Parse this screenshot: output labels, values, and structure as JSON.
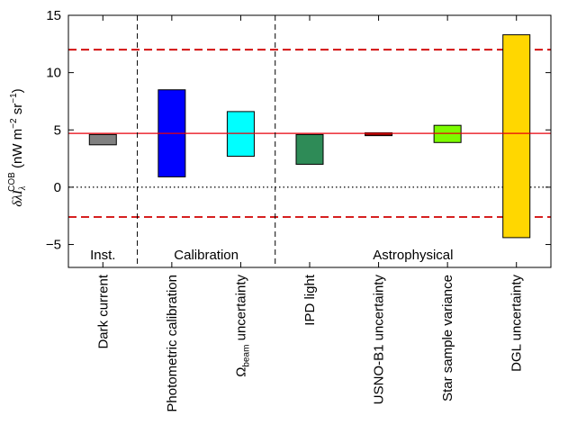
{
  "chart_data": {
    "type": "bar",
    "ylabel_symbol": "δλI",
    "ylabel_sub": "λ",
    "ylabel_sup": "COB",
    "ylabel_units_open": " (nW m",
    "ylabel_units_exp1": "−2",
    "ylabel_units_mid": " sr",
    "ylabel_units_exp2": "−1",
    "ylabel_units_close": ")",
    "ylim": [
      -7,
      15
    ],
    "yticks": [
      {
        "value": -5,
        "label": "−5"
      },
      {
        "value": 0,
        "label": "0"
      },
      {
        "value": 5,
        "label": "5"
      },
      {
        "value": 10,
        "label": "10"
      },
      {
        "value": 15,
        "label": "15"
      }
    ],
    "categories": [
      {
        "label": "Dark current"
      },
      {
        "label": "Photometric calibration"
      },
      {
        "label": "Ω",
        "sub": "beam",
        "rest": " uncertainty"
      },
      {
        "label": "IPD light"
      },
      {
        "label": "USNO-B1 uncertainty"
      },
      {
        "label": "Star sample variance"
      },
      {
        "label": "DGL uncertainty"
      }
    ],
    "bars": [
      {
        "low": 3.7,
        "high": 4.6,
        "color": "#808080"
      },
      {
        "low": 0.9,
        "high": 8.5,
        "color": "#0000ff"
      },
      {
        "low": 2.7,
        "high": 6.6,
        "color": "#00ffff"
      },
      {
        "low": 2.0,
        "high": 4.6,
        "color": "#2e8b57"
      },
      {
        "low": 4.5,
        "high": 4.75,
        "color": "#8b0000"
      },
      {
        "low": 3.9,
        "high": 5.4,
        "color": "#7cfc00"
      },
      {
        "low": -4.4,
        "high": 13.3,
        "color": "#ffd700"
      }
    ],
    "central_line": 4.7,
    "error_band": [
      -2.6,
      12.0
    ],
    "zero_line": 0,
    "groups": [
      {
        "label": "Inst.",
        "from": 0,
        "to": 1
      },
      {
        "label": "Calibration",
        "from": 1,
        "to": 3
      },
      {
        "label": "Astrophysical",
        "from": 3,
        "to": 7
      }
    ],
    "grid": false,
    "colors": {
      "central_line": "#e8000b",
      "error_band": "#d00000"
    }
  }
}
